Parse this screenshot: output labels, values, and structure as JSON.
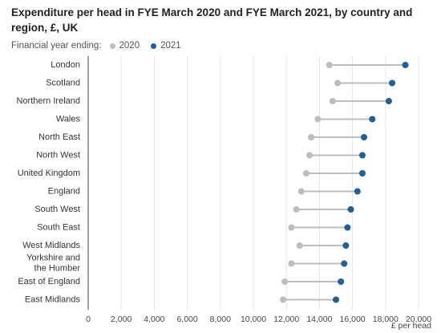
{
  "chart_data": {
    "type": "dumbbell",
    "title": "Expenditure per head in FYE March 2020 and FYE March 2021, by country and region, £, UK",
    "legend_label": "Financial year ending:",
    "series": [
      {
        "name": "2020",
        "color": "#bdbdbd",
        "values": [
          14600,
          15100,
          14800,
          13900,
          13500,
          13400,
          13200,
          12900,
          12600,
          12300,
          12800,
          12300,
          11900,
          11800
        ]
      },
      {
        "name": "2021",
        "color": "#206095",
        "values": [
          19200,
          18400,
          18200,
          17200,
          16700,
          16600,
          16600,
          16300,
          15900,
          15700,
          15600,
          15500,
          15300,
          15000
        ]
      }
    ],
    "categories": [
      "London",
      "Scotland",
      "Northern Ireland",
      "Wales",
      "North East",
      "North West",
      "United Kingdom",
      "England",
      "South West",
      "South East",
      "West Midlands",
      "Yorkshire and the Humber",
      "East of England",
      "East Midlands"
    ],
    "category_lines": [
      [
        "London"
      ],
      [
        "Scotland"
      ],
      [
        "Northern Ireland"
      ],
      [
        "Wales"
      ],
      [
        "North East"
      ],
      [
        "North West"
      ],
      [
        "United Kingdom"
      ],
      [
        "England"
      ],
      [
        "South West"
      ],
      [
        "South East"
      ],
      [
        "West Midlands"
      ],
      [
        "Yorkshire and",
        "the Humber"
      ],
      [
        "East of England"
      ],
      [
        "East Midlands"
      ]
    ],
    "xlim": [
      0,
      20000
    ],
    "xticks": [
      0,
      2000,
      4000,
      6000,
      8000,
      10000,
      12000,
      14000,
      16000,
      18000,
      20000
    ],
    "xtick_labels": [
      "0",
      "2,000",
      "4,000",
      "6,000",
      "8,000",
      "10,000",
      "12,000",
      "14,000",
      "16,000",
      "18,000",
      "20,000"
    ],
    "xlabel": "£ per head",
    "ylabel": "",
    "grid": true,
    "legend_position": "top-left"
  }
}
